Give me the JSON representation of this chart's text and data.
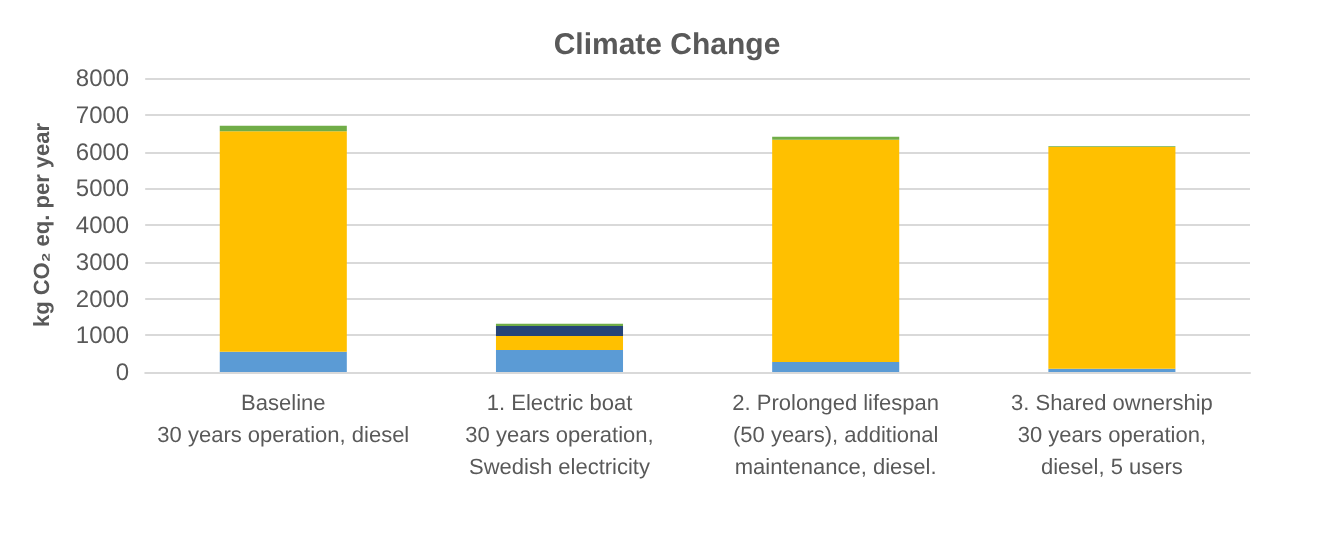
{
  "chart_data": {
    "type": "bar",
    "title": "Climate Change",
    "ylabel": "kg CO₂ eq. per year",
    "categories": [
      "Baseline\n30 years operation, diesel",
      "1. Electric boat\n30 years operation,\nSwedish electricity",
      "2. Prolonged lifespan\n(50 years), additional\nmaintenance, diesel.",
      "3. Shared ownership\n30 years operation,\ndiesel, 5 users"
    ],
    "stacked": true,
    "series": [
      {
        "color": "#5b9bd5",
        "values": [
          550,
          600,
          270,
          90
        ]
      },
      {
        "color": "#ffc000",
        "values": [
          6000,
          380,
          6050,
          6030
        ]
      },
      {
        "color": "#264478",
        "values": [
          0,
          270,
          0,
          0
        ]
      },
      {
        "color": "#70ad47",
        "values": [
          150,
          60,
          80,
          20
        ]
      }
    ],
    "ylim": [
      0,
      8000
    ],
    "yticks": [
      0,
      1000,
      2000,
      3000,
      4000,
      5000,
      6000,
      7000,
      8000
    ],
    "grid": "y"
  }
}
